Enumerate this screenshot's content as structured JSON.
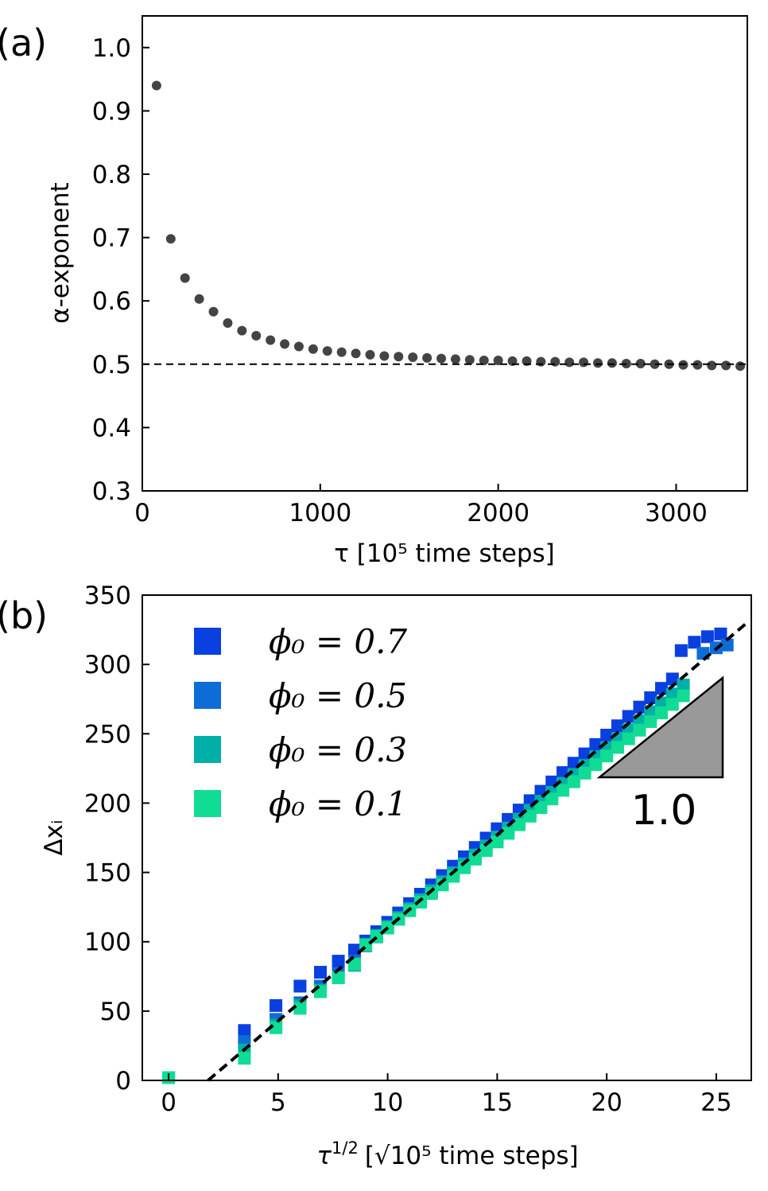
{
  "chart_data": [
    {
      "type": "scatter",
      "panel_label": "(a)",
      "xlabel": "τ [10⁵ time steps]",
      "ylabel": "α-exponent",
      "xlim": [
        0,
        3400
      ],
      "ylim": [
        0.3,
        1.05
      ],
      "xticks": [
        "0",
        "1000",
        "2000",
        "3000"
      ],
      "yticks": [
        "0.3",
        "0.4",
        "0.5",
        "0.6",
        "0.7",
        "0.8",
        "0.9",
        "1.0"
      ],
      "grid": false,
      "reference_line": {
        "y": 0.5,
        "style": "dashed"
      },
      "color": "#444444",
      "x": [
        80,
        160,
        240,
        320,
        400,
        480,
        560,
        640,
        720,
        800,
        880,
        960,
        1040,
        1120,
        1200,
        1280,
        1360,
        1440,
        1520,
        1600,
        1680,
        1760,
        1840,
        1920,
        2000,
        2080,
        2160,
        2240,
        2320,
        2400,
        2480,
        2560,
        2640,
        2720,
        2800,
        2880,
        2960,
        3040,
        3120,
        3200,
        3280,
        3360
      ],
      "y": [
        0.94,
        0.698,
        0.636,
        0.603,
        0.583,
        0.565,
        0.553,
        0.545,
        0.538,
        0.532,
        0.528,
        0.524,
        0.521,
        0.519,
        0.517,
        0.515,
        0.513,
        0.512,
        0.511,
        0.51,
        0.509,
        0.508,
        0.507,
        0.506,
        0.506,
        0.505,
        0.505,
        0.504,
        0.504,
        0.503,
        0.503,
        0.502,
        0.502,
        0.501,
        0.501,
        0.5,
        0.5,
        0.499,
        0.499,
        0.498,
        0.498,
        0.497
      ]
    },
    {
      "type": "scatter",
      "panel_label": "(b)",
      "xlabel_main": "τ",
      "xlabel_sup": "1/2",
      "xlabel_rest": "[√10⁵ time steps]",
      "ylabel": "Δxᵢ",
      "xlim": [
        -1.2,
        26.6
      ],
      "ylim": [
        0,
        350
      ],
      "xticks": [
        "0",
        "5",
        "10",
        "15",
        "20",
        "25"
      ],
      "yticks": [
        "0",
        "50",
        "100",
        "150",
        "200",
        "250",
        "300",
        "350"
      ],
      "grid": false,
      "legend_placement": "top-left",
      "fit_line": {
        "x": [
          1.8,
          26.4
        ],
        "y": [
          0,
          330
        ],
        "style": "dashed"
      },
      "slope_annotation": "1.0",
      "series": [
        {
          "name": "ϕ₀ = 0.7",
          "color": "#0a3fe0",
          "x": [
            0,
            3.46,
            4.9,
            6,
            6.93,
            7.75,
            8.49
          ],
          "y": [
            2,
            36,
            54,
            68,
            78,
            86,
            94
          ],
          "line_slope": 13.5,
          "line_intercept": -21,
          "tail": [
            [
              23.4,
              310
            ],
            [
              24.0,
              316
            ],
            [
              24.6,
              320
            ],
            [
              25.2,
              322
            ]
          ]
        },
        {
          "name": "ϕ₀ = 0.5",
          "color": "#0e6cd6",
          "x": [
            0,
            3.46,
            4.9,
            6,
            6.93,
            7.75,
            8.49
          ],
          "y": [
            2,
            28,
            44,
            56,
            68,
            77,
            86
          ],
          "line_slope": 12.9,
          "line_intercept": -19,
          "tail": [
            [
              24.4,
              308
            ],
            [
              25.0,
              312
            ],
            [
              25.5,
              314
            ]
          ]
        },
        {
          "name": "ϕ₀ = 0.3",
          "color": "#00b0a8",
          "x": [
            0,
            3.46,
            4.9,
            6,
            6.93,
            7.75,
            8.49
          ],
          "y": [
            2,
            22,
            40,
            54,
            65,
            74,
            83
          ],
          "line_slope": 12.9,
          "line_intercept": -18,
          "tail": []
        },
        {
          "name": "ϕ₀ = 0.1",
          "color": "#10dc94",
          "x": [
            0,
            3.46,
            4.9,
            6,
            6.93,
            7.75,
            8.49
          ],
          "y": [
            2,
            16,
            38,
            52,
            64,
            74,
            84
          ],
          "line_slope": 12.4,
          "line_intercept": -14,
          "tail": []
        }
      ]
    }
  ]
}
